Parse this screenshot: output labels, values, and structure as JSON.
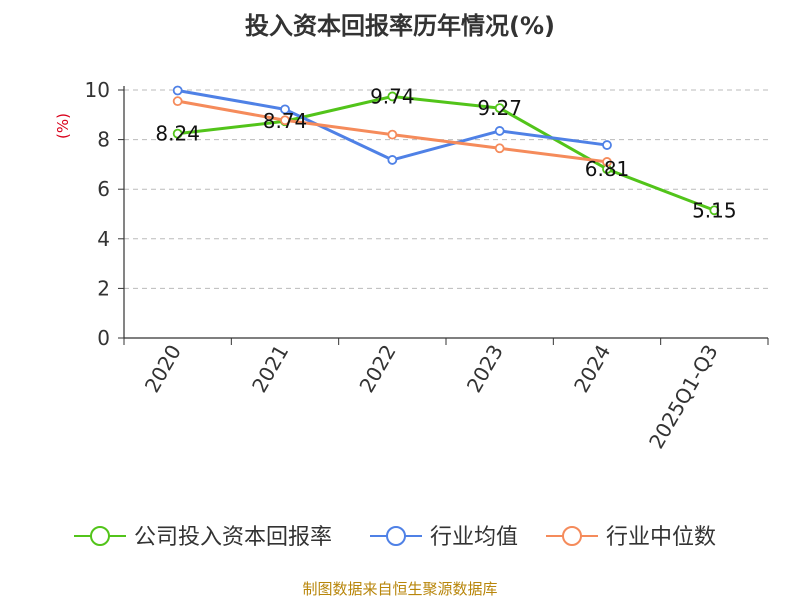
{
  "chart_data": {
    "type": "line",
    "title": "投入资本回报率历年情况(%)",
    "xlabel": "",
    "ylabel": "(%)",
    "categories": [
      "2020",
      "2021",
      "2022",
      "2023",
      "2024",
      "2025Q1-Q3"
    ],
    "ylim": [
      0,
      10
    ],
    "yticks": [
      0,
      2,
      4,
      6,
      8,
      10
    ],
    "grid": true,
    "legend_position": "bottom",
    "series": [
      {
        "name": "公司投入资本回报率",
        "color": "#52c41a",
        "values": [
          8.24,
          8.74,
          9.74,
          9.27,
          6.81,
          5.15
        ],
        "labels": [
          "8.24",
          "8.74",
          "9.74",
          "9.27",
          "6.81",
          "5.15"
        ]
      },
      {
        "name": "行业均值",
        "color": "#4f81e6",
        "values": [
          9.98,
          9.22,
          7.18,
          8.35,
          7.78,
          null
        ]
      },
      {
        "name": "行业中位数",
        "color": "#f58b5b",
        "values": [
          9.55,
          8.78,
          8.2,
          7.65,
          7.1,
          null
        ]
      }
    ]
  },
  "footer": {
    "source": "制图数据来自恒生聚源数据库"
  }
}
